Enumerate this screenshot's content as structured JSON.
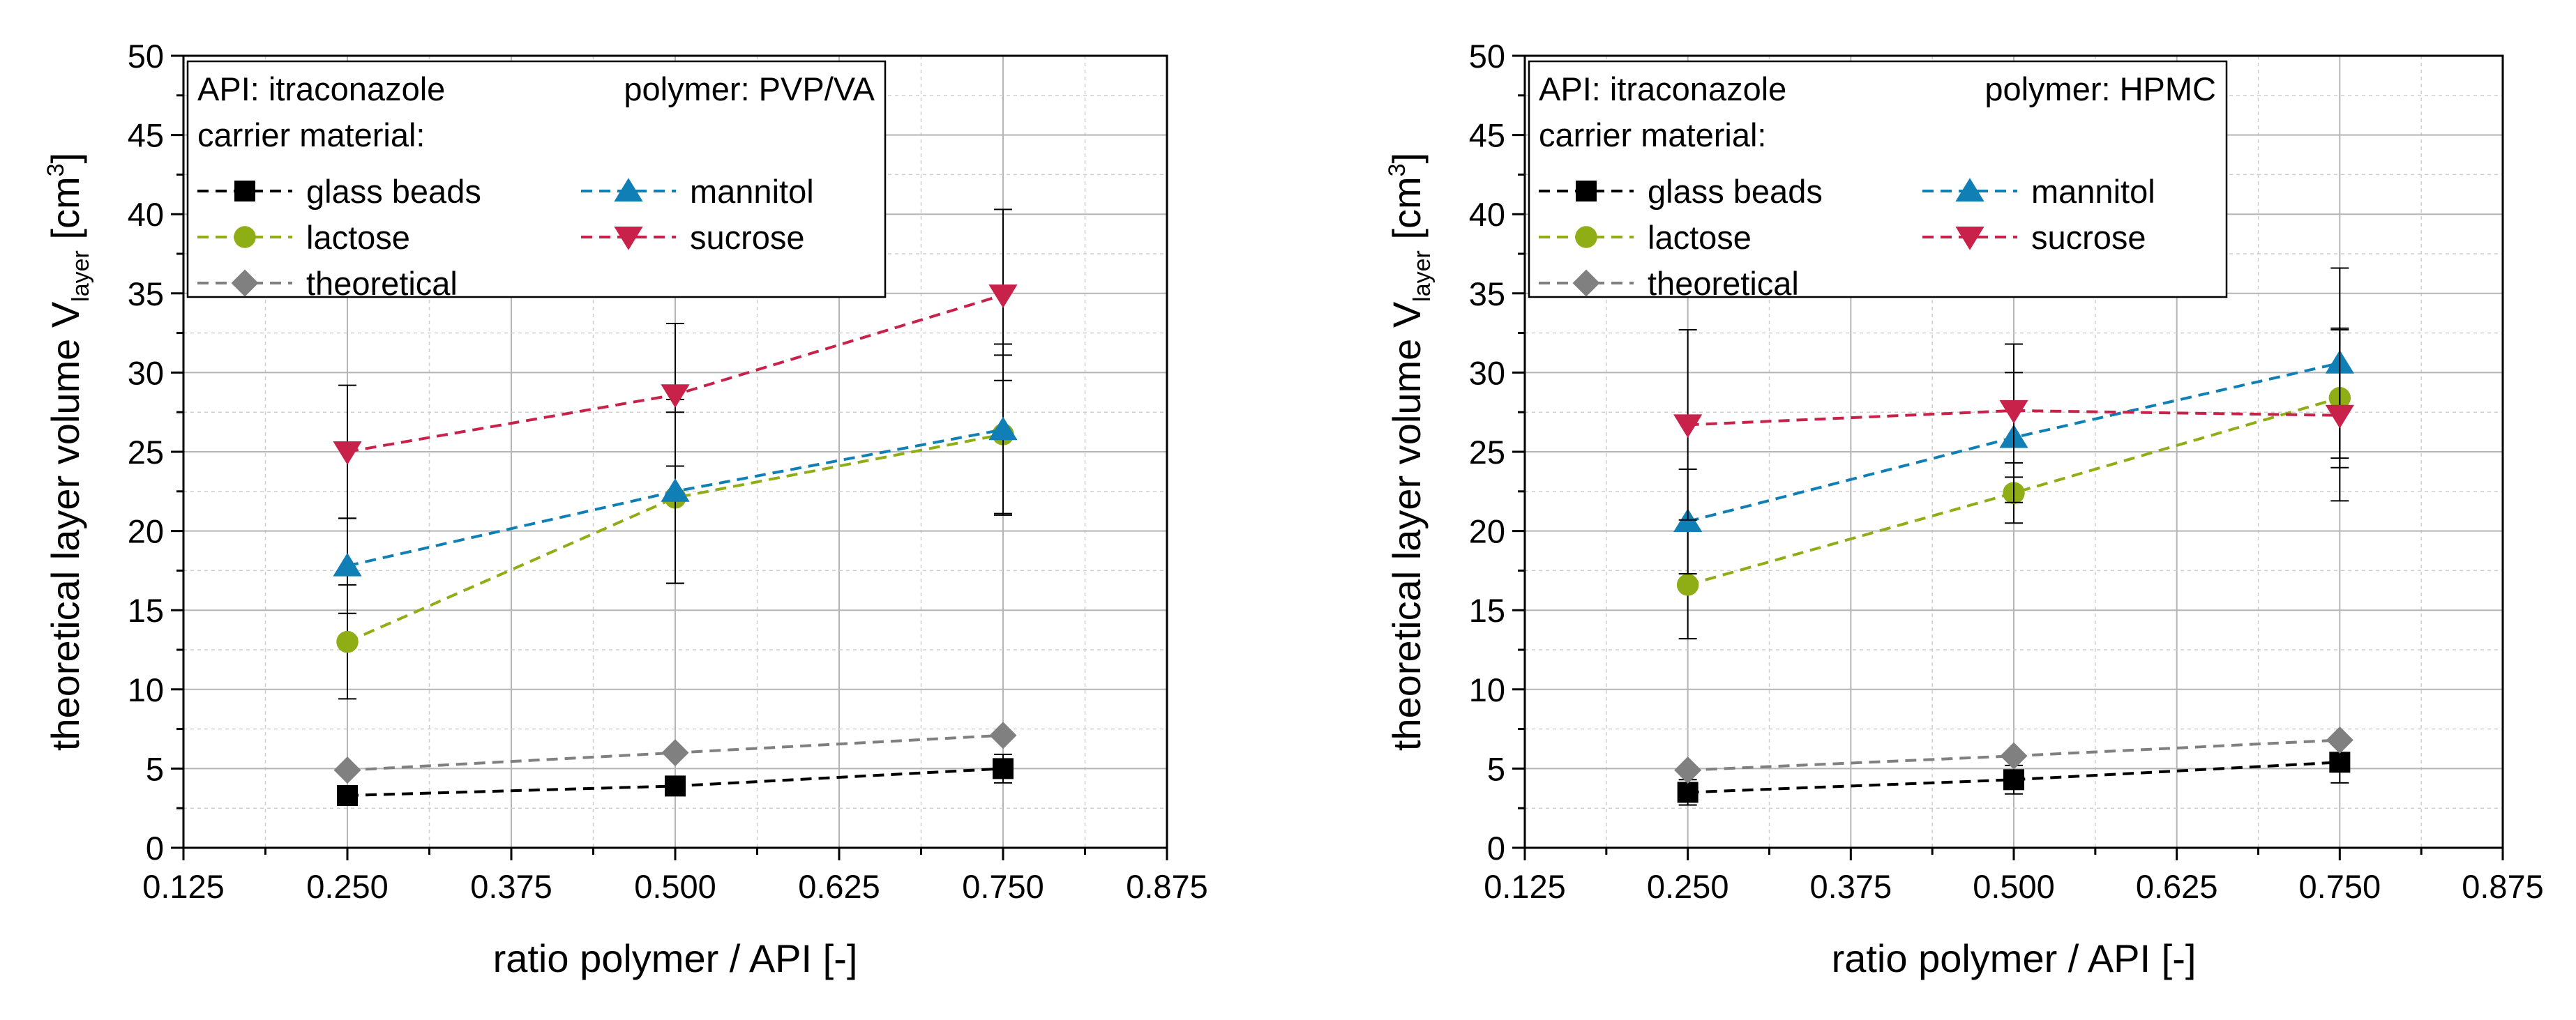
{
  "chart_data": [
    {
      "type": "line",
      "panel": "left",
      "xlabel": "ratio polymer / API [-]",
      "ylabel_main": "theoretical layer volume V",
      "ylabel_sub": "layer",
      "ylabel_unit_open": " [cm",
      "ylabel_unit_sup": "3",
      "ylabel_unit_close": "]",
      "xlim": [
        0.125,
        0.875
      ],
      "ylim": [
        0,
        50
      ],
      "xticks": [
        0.125,
        0.25,
        0.375,
        0.5,
        0.625,
        0.75,
        0.875
      ],
      "xtick_labels": [
        "0.125",
        "0.250",
        "0.375",
        "0.500",
        "0.625",
        "0.750",
        "0.875"
      ],
      "yticks": [
        0,
        5,
        10,
        15,
        20,
        25,
        30,
        35,
        40,
        45,
        50
      ],
      "ytick_labels": [
        "0",
        "5",
        "10",
        "15",
        "20",
        "25",
        "30",
        "35",
        "40",
        "45",
        "50"
      ],
      "legend": {
        "api_text": "API: itraconazole",
        "polymer_text": "polymer: PVP/VA",
        "carrier_text": "carrier material:"
      },
      "grid": true,
      "series": [
        {
          "key": "glass",
          "name": "glass beads",
          "color": "#000000",
          "marker": "square",
          "x": [
            0.25,
            0.5,
            0.75
          ],
          "y": [
            3.3,
            3.9,
            5.0
          ],
          "err": [
            0.6,
            0.4,
            0.9
          ]
        },
        {
          "key": "lactose",
          "name": "lactose",
          "color": "#8fad15",
          "marker": "circle",
          "x": [
            0.25,
            0.5,
            0.75
          ],
          "y": [
            13.0,
            22.1,
            26.1
          ],
          "err": [
            3.6,
            5.4,
            5.0
          ]
        },
        {
          "key": "theoretical",
          "name": "theoretical",
          "color": "#808080",
          "marker": "diamond",
          "x": [
            0.25,
            0.5,
            0.75
          ],
          "y": [
            4.9,
            6.0,
            7.1
          ],
          "err": [
            0,
            0,
            0
          ]
        },
        {
          "key": "mannitol",
          "name": "mannitol",
          "color": "#0f7fb6",
          "marker": "triangle-up",
          "x": [
            0.25,
            0.5,
            0.75
          ],
          "y": [
            17.8,
            22.5,
            26.4
          ],
          "err": [
            3.0,
            5.8,
            5.4
          ]
        },
        {
          "key": "sucrose",
          "name": "sucrose",
          "color": "#c8224a",
          "marker": "triangle-down",
          "x": [
            0.25,
            0.5,
            0.75
          ],
          "y": [
            25.0,
            28.6,
            34.9
          ],
          "err": [
            4.2,
            4.5,
            5.4
          ]
        }
      ]
    },
    {
      "type": "line",
      "panel": "right",
      "xlabel": "ratio polymer / API [-]",
      "ylabel_main": "theoretical layer volume V",
      "ylabel_sub": "layer",
      "ylabel_unit_open": " [cm",
      "ylabel_unit_sup": "3",
      "ylabel_unit_close": "]",
      "xlim": [
        0.125,
        0.875
      ],
      "ylim": [
        0,
        50
      ],
      "xticks": [
        0.125,
        0.25,
        0.375,
        0.5,
        0.625,
        0.75,
        0.875
      ],
      "xtick_labels": [
        "0.125",
        "0.250",
        "0.375",
        "0.500",
        "0.625",
        "0.750",
        "0.875"
      ],
      "yticks": [
        0,
        5,
        10,
        15,
        20,
        25,
        30,
        35,
        40,
        45,
        50
      ],
      "ytick_labels": [
        "0",
        "5",
        "10",
        "15",
        "20",
        "25",
        "30",
        "35",
        "40",
        "45",
        "50"
      ],
      "legend": {
        "api_text": "API: itraconazole",
        "polymer_text": "polymer: HPMC",
        "carrier_text": "carrier material:"
      },
      "grid": true,
      "series": [
        {
          "key": "glass",
          "name": "glass beads",
          "color": "#000000",
          "marker": "square",
          "x": [
            0.25,
            0.5,
            0.75
          ],
          "y": [
            3.5,
            4.3,
            5.4
          ],
          "err": [
            0.8,
            0.9,
            1.3
          ]
        },
        {
          "key": "lactose",
          "name": "lactose",
          "color": "#8fad15",
          "marker": "circle",
          "x": [
            0.25,
            0.5,
            0.75
          ],
          "y": [
            16.6,
            22.4,
            28.4
          ],
          "err": [
            3.4,
            1.9,
            4.4
          ]
        },
        {
          "key": "theoretical",
          "name": "theoretical",
          "color": "#808080",
          "marker": "diamond",
          "x": [
            0.25,
            0.5,
            0.75
          ],
          "y": [
            4.9,
            5.8,
            6.8
          ],
          "err": [
            0,
            0,
            0
          ]
        },
        {
          "key": "mannitol",
          "name": "mannitol",
          "color": "#0f7fb6",
          "marker": "triangle-up",
          "x": [
            0.25,
            0.5,
            0.75
          ],
          "y": [
            20.6,
            25.9,
            30.6
          ],
          "err": [
            3.3,
            4.1,
            6.0
          ]
        },
        {
          "key": "sucrose",
          "name": "sucrose",
          "color": "#c8224a",
          "marker": "triangle-down",
          "x": [
            0.25,
            0.5,
            0.75
          ],
          "y": [
            26.7,
            27.6,
            27.3
          ],
          "err": [
            6.0,
            4.2,
            5.4
          ]
        }
      ]
    }
  ]
}
